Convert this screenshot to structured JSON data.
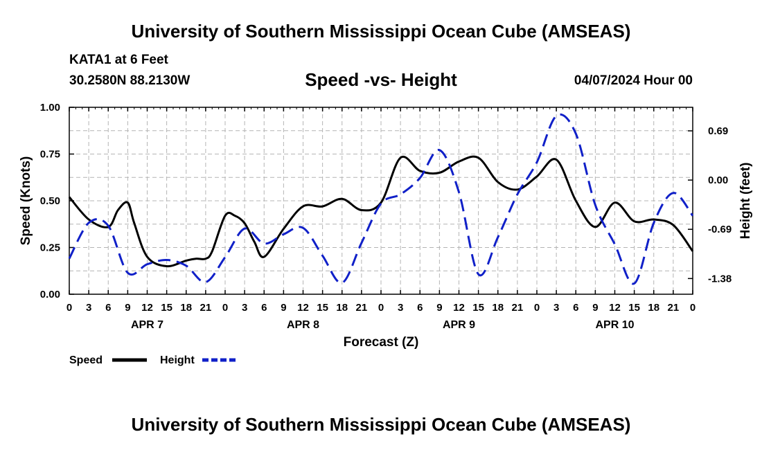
{
  "header": {
    "title": "University of Southern Mississippi Ocean Cube (AMSEAS)",
    "station": "KATA1 at 6 Feet",
    "coords": "30.2580N  88.2130W",
    "chart_title": "Speed -vs- Height",
    "date": "04/07/2024 Hour 00"
  },
  "footer": {
    "title": "University of Southern Mississippi Ocean Cube (AMSEAS)"
  },
  "colors": {
    "speed": "#000000",
    "height": "#1020c8",
    "grid": "#b4b4b4"
  },
  "chart_data": {
    "type": "line",
    "title": "Speed -vs- Height",
    "xlabel": "Forecast (Z)",
    "ylabel": "Speed (Knots)",
    "y2label": "Height (feet)",
    "grid": true,
    "legend_position": "bottom-left",
    "x_range": [
      0,
      96
    ],
    "ylim": [
      0,
      1.0
    ],
    "y2lim": [
      -1.6,
      1.02
    ],
    "x_tick_step": 3,
    "x_tick_labels": [
      "0",
      "3",
      "6",
      "9",
      "12",
      "15",
      "18",
      "21",
      "0",
      "3",
      "6",
      "9",
      "12",
      "15",
      "18",
      "21",
      "0",
      "3",
      "6",
      "9",
      "12",
      "15",
      "18",
      "21",
      "0",
      "3",
      "6",
      "9",
      "12",
      "15",
      "18",
      "21",
      "0"
    ],
    "day_labels": [
      {
        "label": "APR 7",
        "x": 12
      },
      {
        "label": "APR 8",
        "x": 36
      },
      {
        "label": "APR 9",
        "x": 60
      },
      {
        "label": "APR 10",
        "x": 84
      }
    ],
    "y_ticks": [
      {
        "value": 0.0,
        "label": "0.00"
      },
      {
        "value": 0.25,
        "label": "0.25"
      },
      {
        "value": 0.5,
        "label": "0.50"
      },
      {
        "value": 0.75,
        "label": "0.75"
      },
      {
        "value": 1.0,
        "label": "1.00"
      }
    ],
    "y2_ticks": [
      {
        "value": 0.69,
        "label": "0.69"
      },
      {
        "value": 0.0,
        "label": "0.00"
      },
      {
        "value": -0.69,
        "label": "-0.69"
      },
      {
        "value": -1.38,
        "label": "-1.38"
      }
    ],
    "series": [
      {
        "name": "Speed",
        "axis": "left",
        "style": "solid",
        "x": [
          0,
          3,
          6,
          7.5,
          9,
          10,
          12,
          15,
          18,
          19.5,
          21,
          22,
          24,
          25.5,
          27,
          28.5,
          30,
          33,
          36,
          39,
          42,
          45,
          48,
          51,
          54,
          57,
          60,
          63,
          66,
          69,
          72,
          75,
          78,
          81,
          84,
          87,
          90,
          93,
          96
        ],
        "y": [
          0.52,
          0.4,
          0.36,
          0.45,
          0.49,
          0.38,
          0.2,
          0.15,
          0.18,
          0.19,
          0.19,
          0.23,
          0.42,
          0.42,
          0.38,
          0.28,
          0.2,
          0.35,
          0.47,
          0.47,
          0.51,
          0.45,
          0.49,
          0.73,
          0.66,
          0.65,
          0.71,
          0.73,
          0.6,
          0.56,
          0.63,
          0.72,
          0.5,
          0.36,
          0.49,
          0.39,
          0.4,
          0.37,
          0.23
        ]
      },
      {
        "name": "Height",
        "axis": "right",
        "style": "dashed",
        "x": [
          0,
          3,
          6,
          9,
          12,
          15,
          18,
          21,
          24,
          27,
          30,
          33,
          36,
          39,
          42,
          45,
          48,
          51,
          54,
          57,
          60,
          63,
          66,
          69,
          72,
          75,
          78,
          81,
          84,
          87,
          90,
          93,
          96
        ],
        "y": [
          -1.1,
          -0.6,
          -0.64,
          -1.3,
          -1.18,
          -1.12,
          -1.2,
          -1.43,
          -1.08,
          -0.68,
          -0.89,
          -0.76,
          -0.67,
          -1.06,
          -1.44,
          -0.88,
          -0.33,
          -0.2,
          0.03,
          0.42,
          -0.17,
          -1.32,
          -0.8,
          -0.2,
          0.25,
          0.9,
          0.65,
          -0.35,
          -0.9,
          -1.45,
          -0.6,
          -0.18,
          -0.5
        ]
      }
    ]
  },
  "legend": {
    "speed_label": "Speed",
    "height_label": "Height"
  }
}
